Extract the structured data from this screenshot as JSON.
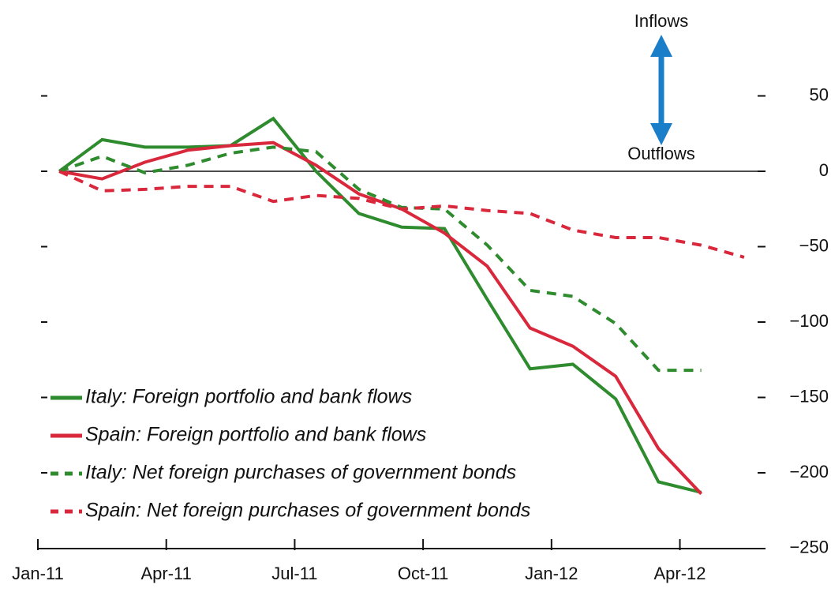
{
  "chart_data": {
    "type": "line",
    "categories": [
      "Jan-11",
      null,
      null,
      "Apr-11",
      null,
      null,
      "Jul-11",
      null,
      null,
      "Oct-11",
      null,
      null,
      "Jan-12",
      null,
      null,
      "Apr-12",
      null
    ],
    "series": [
      {
        "name": "Italy: Foreign portfolio and bank flows",
        "color": "#2e8b2e",
        "dash": false,
        "values": [
          0,
          21,
          16,
          16,
          17,
          35,
          0,
          -28,
          -37,
          -38,
          -85,
          -131,
          -128,
          -151,
          -206,
          -213,
          null
        ]
      },
      {
        "name": "Spain: Foreign portfolio and bank flows",
        "color": "#d9283c",
        "dash": false,
        "values": [
          0,
          -5,
          6,
          14,
          17,
          19,
          4,
          -15,
          -25,
          -41,
          -63,
          -104,
          -116,
          -136,
          -184,
          -214,
          null
        ]
      },
      {
        "name": "Italy: Net foreign purchases of government bonds",
        "color": "#2e8b2e",
        "dash": true,
        "values": [
          0,
          10,
          -1,
          4,
          12,
          16,
          13,
          -12,
          -24,
          -25,
          -49,
          -79,
          -83,
          -101,
          -132,
          -132,
          null
        ]
      },
      {
        "name": "Spain: Net foreign purchases of government bonds",
        "color": "#d9283c",
        "dash": true,
        "values": [
          0,
          -13,
          -12,
          -10,
          -10,
          -20,
          -16,
          -18,
          -25,
          -23,
          -26,
          -28,
          -39,
          -44,
          -44,
          -49,
          -57
        ]
      }
    ],
    "ylim": [
      -250,
      60
    ],
    "yticks": [
      {
        "value": -250,
        "label": "−250"
      },
      {
        "value": -200,
        "label": "−200"
      },
      {
        "value": -150,
        "label": "−150"
      },
      {
        "value": -100,
        "label": "−100"
      },
      {
        "value": -50,
        "label": "−50"
      },
      0,
      50
    ],
    "annotations": [
      "Inflows",
      "Outflows"
    ],
    "arrow_color": "#1a7fc8"
  }
}
